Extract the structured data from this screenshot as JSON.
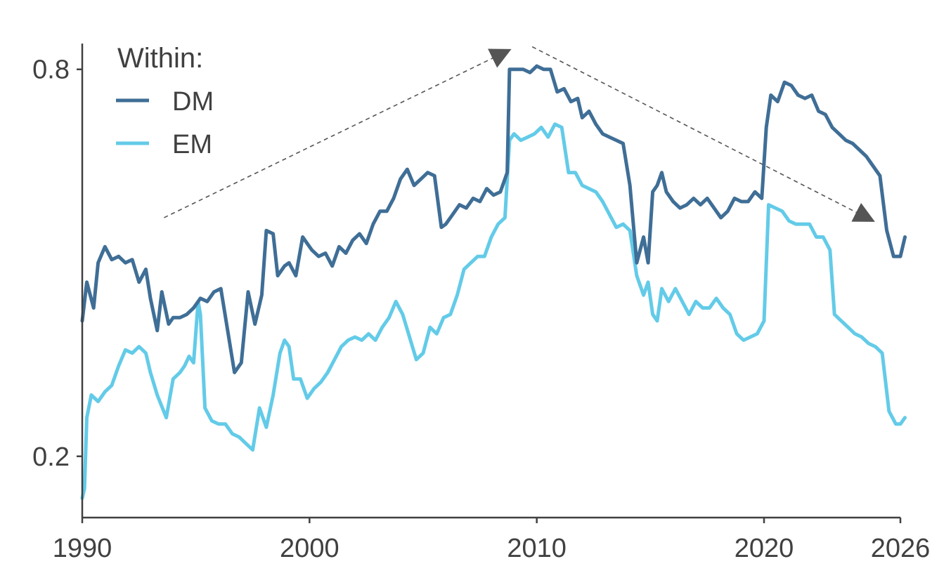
{
  "chart_data": {
    "type": "line",
    "title": "",
    "xlabel": "",
    "ylabel": "",
    "xlim": [
      1990,
      2026
    ],
    "ylim": [
      0.105,
      0.84
    ],
    "x_ticks": [
      1990,
      2000,
      2010,
      2020,
      2026
    ],
    "y_ticks": [
      0.2,
      0.8
    ],
    "x_tick_labels": [
      "1990",
      "2000",
      "2010",
      "2020",
      "2026"
    ],
    "y_tick_labels": [
      "0.2",
      "0.8"
    ],
    "grid": false,
    "legend": {
      "title": "Within:",
      "position": "top-left"
    },
    "colors": {
      "DM": "#3F6E96",
      "EM": "#63CBE8",
      "axis": "#404040",
      "annotation": "#555555"
    },
    "series": [
      {
        "name": "DM",
        "x": [
          1990.0,
          1990.2,
          1990.5,
          1990.7,
          1991.0,
          1991.3,
          1991.6,
          1991.9,
          1992.2,
          1992.5,
          1992.8,
          1993.0,
          1993.3,
          1993.5,
          1993.8,
          1994.0,
          1994.3,
          1994.6,
          1994.9,
          1995.2,
          1995.5,
          1995.8,
          1996.1,
          1996.4,
          1996.7,
          1997.0,
          1997.3,
          1997.6,
          1997.9,
          1998.1,
          1998.4,
          1998.6,
          1998.9,
          1999.1,
          1999.4,
          1999.7,
          2000.1,
          2000.4,
          2000.7,
          2001.0,
          2001.3,
          2001.6,
          2001.9,
          2002.2,
          2002.5,
          2002.8,
          2003.1,
          2003.4,
          2003.7,
          2004.0,
          2004.3,
          2004.6,
          2004.9,
          2005.2,
          2005.5,
          2005.8,
          2006.0,
          2006.3,
          2006.6,
          2006.9,
          2007.2,
          2007.5,
          2007.8,
          2008.1,
          2008.4,
          2008.7,
          2008.8,
          2009.1,
          2009.4,
          2009.7,
          2010.0,
          2010.3,
          2010.6,
          2010.9,
          2011.2,
          2011.5,
          2011.8,
          2012.0,
          2012.3,
          2012.6,
          2012.9,
          2013.2,
          2013.5,
          2013.8,
          2014.1,
          2014.4,
          2014.7,
          2014.9,
          2015.1,
          2015.3,
          2015.5,
          2015.7,
          2016.0,
          2016.3,
          2016.6,
          2016.9,
          2017.2,
          2017.5,
          2017.8,
          2018.1,
          2018.4,
          2018.7,
          2019.0,
          2019.3,
          2019.6,
          2019.9,
          2020.1,
          2020.3,
          2020.6,
          2020.9,
          2021.2,
          2021.5,
          2021.8,
          2022.1,
          2022.4,
          2022.7,
          2023.0,
          2023.3,
          2023.6,
          2023.9,
          2024.2,
          2024.5,
          2024.8,
          2025.1,
          2025.4,
          2025.7,
          2026.0,
          2026.2
        ],
        "values": [
          0.41,
          0.47,
          0.43,
          0.5,
          0.525,
          0.505,
          0.51,
          0.5,
          0.505,
          0.47,
          0.49,
          0.445,
          0.395,
          0.455,
          0.405,
          0.415,
          0.415,
          0.42,
          0.43,
          0.445,
          0.44,
          0.455,
          0.46,
          0.395,
          0.33,
          0.345,
          0.455,
          0.405,
          0.45,
          0.55,
          0.545,
          0.48,
          0.495,
          0.5,
          0.48,
          0.54,
          0.52,
          0.51,
          0.515,
          0.495,
          0.525,
          0.515,
          0.535,
          0.545,
          0.53,
          0.56,
          0.58,
          0.58,
          0.6,
          0.63,
          0.645,
          0.62,
          0.63,
          0.64,
          0.635,
          0.555,
          0.56,
          0.575,
          0.59,
          0.585,
          0.6,
          0.595,
          0.615,
          0.605,
          0.61,
          0.64,
          0.8,
          0.8,
          0.8,
          0.795,
          0.805,
          0.8,
          0.8,
          0.765,
          0.77,
          0.75,
          0.755,
          0.725,
          0.735,
          0.715,
          0.7,
          0.695,
          0.69,
          0.685,
          0.62,
          0.5,
          0.54,
          0.5,
          0.61,
          0.62,
          0.64,
          0.61,
          0.595,
          0.585,
          0.59,
          0.6,
          0.59,
          0.6,
          0.585,
          0.57,
          0.58,
          0.6,
          0.595,
          0.595,
          0.61,
          0.6,
          0.71,
          0.76,
          0.75,
          0.78,
          0.775,
          0.76,
          0.755,
          0.76,
          0.735,
          0.73,
          0.71,
          0.7,
          0.69,
          0.685,
          0.675,
          0.665,
          0.65,
          0.635,
          0.55,
          0.51,
          0.51,
          0.54
        ]
      },
      {
        "name": "EM",
        "x": [
          1990.0,
          1990.1,
          1990.2,
          1990.4,
          1990.7,
          1991.0,
          1991.3,
          1991.6,
          1991.9,
          1992.2,
          1992.5,
          1992.8,
          1993.0,
          1993.3,
          1993.7,
          1994.0,
          1994.3,
          1994.5,
          1994.7,
          1994.9,
          1995.1,
          1995.2,
          1995.4,
          1995.7,
          1996.0,
          1996.3,
          1996.6,
          1996.9,
          1997.2,
          1997.5,
          1997.8,
          1998.1,
          1998.4,
          1998.7,
          1998.9,
          1999.1,
          1999.3,
          1999.6,
          1999.9,
          2000.2,
          2000.5,
          2000.8,
          2001.1,
          2001.4,
          2001.7,
          2002.0,
          2002.3,
          2002.6,
          2002.9,
          2003.2,
          2003.5,
          2003.8,
          2004.1,
          2004.4,
          2004.7,
          2005.0,
          2005.3,
          2005.6,
          2005.9,
          2006.2,
          2006.5,
          2006.8,
          2007.1,
          2007.4,
          2007.7,
          2008.0,
          2008.3,
          2008.6,
          2008.8,
          2009.0,
          2009.3,
          2009.6,
          2009.9,
          2010.2,
          2010.5,
          2010.8,
          2011.1,
          2011.4,
          2011.7,
          2012.0,
          2012.3,
          2012.6,
          2012.9,
          2013.2,
          2013.5,
          2013.8,
          2014.1,
          2014.4,
          2014.7,
          2014.9,
          2015.1,
          2015.3,
          2015.5,
          2015.8,
          2016.1,
          2016.4,
          2016.7,
          2017.0,
          2017.3,
          2017.6,
          2017.9,
          2018.2,
          2018.5,
          2018.8,
          2019.1,
          2019.4,
          2019.7,
          2020.0,
          2020.2,
          2020.5,
          2020.8,
          2021.1,
          2021.4,
          2021.7,
          2022.0,
          2022.3,
          2022.6,
          2022.9,
          2023.1,
          2023.4,
          2023.7,
          2024.0,
          2024.3,
          2024.6,
          2024.9,
          2025.2,
          2025.5,
          2025.8,
          2026.0,
          2026.2
        ],
        "values": [
          0.135,
          0.15,
          0.26,
          0.295,
          0.285,
          0.3,
          0.31,
          0.34,
          0.365,
          0.36,
          0.37,
          0.36,
          0.33,
          0.295,
          0.26,
          0.32,
          0.33,
          0.34,
          0.355,
          0.345,
          0.44,
          0.42,
          0.275,
          0.255,
          0.25,
          0.25,
          0.235,
          0.23,
          0.22,
          0.21,
          0.275,
          0.245,
          0.295,
          0.36,
          0.38,
          0.37,
          0.32,
          0.32,
          0.29,
          0.305,
          0.315,
          0.33,
          0.35,
          0.37,
          0.38,
          0.385,
          0.38,
          0.39,
          0.38,
          0.4,
          0.415,
          0.44,
          0.42,
          0.385,
          0.35,
          0.36,
          0.4,
          0.39,
          0.415,
          0.42,
          0.45,
          0.49,
          0.5,
          0.51,
          0.51,
          0.54,
          0.56,
          0.57,
          0.69,
          0.7,
          0.69,
          0.695,
          0.7,
          0.71,
          0.695,
          0.715,
          0.71,
          0.64,
          0.64,
          0.62,
          0.615,
          0.61,
          0.595,
          0.575,
          0.555,
          0.56,
          0.55,
          0.48,
          0.45,
          0.47,
          0.42,
          0.41,
          0.46,
          0.44,
          0.46,
          0.44,
          0.42,
          0.44,
          0.43,
          0.43,
          0.445,
          0.43,
          0.42,
          0.39,
          0.38,
          0.385,
          0.39,
          0.41,
          0.59,
          0.585,
          0.58,
          0.565,
          0.56,
          0.56,
          0.56,
          0.54,
          0.54,
          0.52,
          0.42,
          0.41,
          0.4,
          0.39,
          0.385,
          0.375,
          0.37,
          0.36,
          0.27,
          0.25,
          0.25,
          0.26
        ]
      }
    ],
    "annotations": [
      {
        "type": "arrow",
        "style": "dashed",
        "from": [
          1993.6,
          0.57
        ],
        "to": [
          2008.8,
          0.83
        ]
      },
      {
        "type": "arrow",
        "style": "dashed",
        "from": [
          2009.8,
          0.835
        ],
        "to": [
          2024.8,
          0.565
        ]
      }
    ]
  }
}
